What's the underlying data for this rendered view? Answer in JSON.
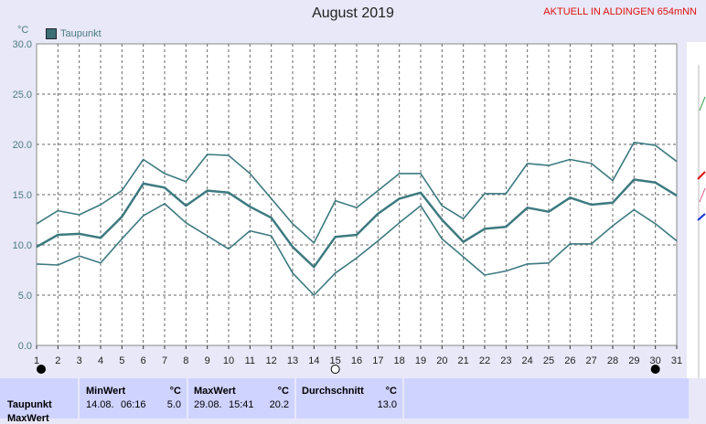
{
  "title": "August 2019",
  "station": "AKTUELL IN ALDINGEN 654mNN",
  "unit": "°C",
  "legend": {
    "label": "Taupunkt",
    "color": "#3c6f74"
  },
  "chart_data": {
    "type": "line",
    "title": "August 2019",
    "ylabel": "°C",
    "xlabel": "",
    "ylim": [
      0,
      30
    ],
    "y_ticks": [
      "0.0",
      "5.0",
      "10.0",
      "15.0",
      "20.0",
      "25.0",
      "30.0"
    ],
    "x": [
      1,
      2,
      3,
      4,
      5,
      6,
      7,
      8,
      9,
      10,
      11,
      12,
      13,
      14,
      15,
      16,
      17,
      18,
      19,
      20,
      21,
      22,
      23,
      24,
      25,
      26,
      27,
      28,
      29,
      30,
      31
    ],
    "grid": true,
    "legend_position": "top-left",
    "series": [
      {
        "name": "",
        "role": "max",
        "color": "#3c7a80",
        "values": [
          12.1,
          13.4,
          13.0,
          14.0,
          15.4,
          18.5,
          17.1,
          16.3,
          19.0,
          18.9,
          17.1,
          14.6,
          12.1,
          10.2,
          14.4,
          13.7,
          15.4,
          17.1,
          17.1,
          13.9,
          12.6,
          15.1,
          15.1,
          18.1,
          17.9,
          18.5,
          18.1,
          16.4,
          20.2,
          19.9,
          18.3
        ]
      },
      {
        "name": "Taupunkt",
        "role": "avg",
        "color": "#3c7a80",
        "values": [
          9.8,
          11.0,
          11.1,
          10.7,
          12.8,
          16.1,
          15.7,
          13.9,
          15.4,
          15.2,
          13.8,
          12.7,
          9.8,
          7.8,
          10.8,
          11.0,
          13.1,
          14.6,
          15.2,
          12.5,
          10.3,
          11.6,
          11.8,
          13.7,
          13.3,
          14.7,
          14.0,
          14.2,
          16.5,
          16.2,
          14.9
        ]
      },
      {
        "name": "",
        "role": "min",
        "color": "#3c7a80",
        "values": [
          8.1,
          8.0,
          8.9,
          8.2,
          10.6,
          12.9,
          14.1,
          12.2,
          10.9,
          9.6,
          11.4,
          10.9,
          7.2,
          5.0,
          7.2,
          8.7,
          10.4,
          12.2,
          13.9,
          10.6,
          8.8,
          7.0,
          7.4,
          8.1,
          8.2,
          10.1,
          10.1,
          11.9,
          13.5,
          12.1,
          10.4
        ]
      }
    ],
    "moon_phases": [
      {
        "day": 1,
        "phase": "new"
      },
      {
        "day": 15,
        "phase": "full"
      },
      {
        "day": 30,
        "phase": "new"
      }
    ]
  },
  "stats": {
    "row_label": "Taupunkt",
    "row_label_cut": "MaxWert",
    "min": {
      "header": "MinWert",
      "unit": "°C",
      "date": "14.08.",
      "time": "06:16",
      "value": "5.0"
    },
    "max": {
      "header": "MaxWert",
      "unit": "°C",
      "date": "29.08.",
      "time": "15:41",
      "value": "20.2"
    },
    "avg": {
      "header": "Durchschnitt",
      "unit": "°C",
      "value": "13.0"
    }
  }
}
